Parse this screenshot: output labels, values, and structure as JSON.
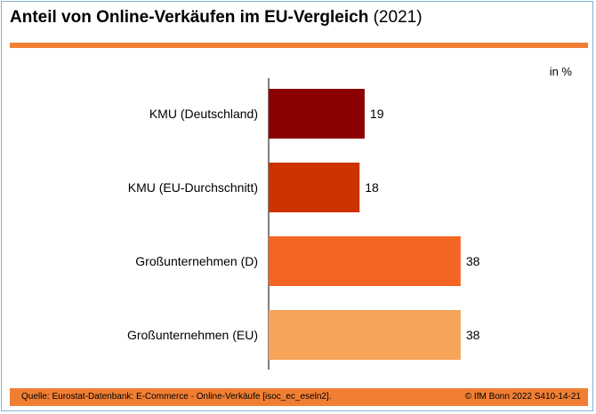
{
  "header": {
    "title_bold": "Anteil von Online-Verkäufen im EU-Vergleich",
    "title_normal": " (2021)"
  },
  "unit": "in %",
  "footer": {
    "source": "Quelle: Eurostat-Datenbank: E-Commerce - Online-Verkäufe [isoc_ec_eseln2].",
    "copyright": "© IfM Bonn 2022   S410-14-21"
  },
  "chart_data": {
    "type": "bar",
    "orientation": "horizontal",
    "title": "Anteil von Online-Verkäufen im EU-Vergleich (2021)",
    "unit": "in %",
    "categories": [
      "KMU (Deutschland)",
      "KMU (EU-Durchschnitt)",
      "Großunternehmen (D)",
      "Großunternehmen (EU)"
    ],
    "values": [
      19,
      18,
      38,
      38
    ],
    "colors": [
      "#8b0000",
      "#cc3300",
      "#f26522",
      "#f5a45a"
    ],
    "xlim": [
      0,
      40
    ],
    "grid": false,
    "legend": "none"
  }
}
